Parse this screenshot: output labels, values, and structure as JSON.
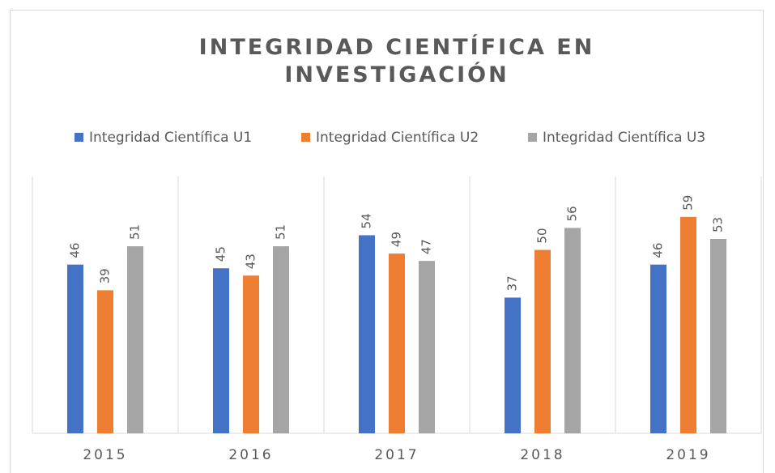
{
  "chart_data": {
    "type": "bar",
    "title": "INTEGRIDAD CIENTÍFICA EN INVESTIGACIÓN",
    "categories": [
      "2015",
      "2016",
      "2017",
      "2018",
      "2019"
    ],
    "series": [
      {
        "name": "Integridad Científica U1",
        "color": "#4472c4",
        "values": [
          46,
          45,
          54,
          37,
          46
        ]
      },
      {
        "name": "Integridad Científica U2",
        "color": "#ed7d31",
        "values": [
          39,
          43,
          49,
          50,
          59
        ]
      },
      {
        "name": "Integridad Científica U3",
        "color": "#a5a5a5",
        "values": [
          51,
          51,
          47,
          56,
          53
        ]
      }
    ],
    "ylim": [
      0,
      70
    ],
    "legend": "top"
  }
}
